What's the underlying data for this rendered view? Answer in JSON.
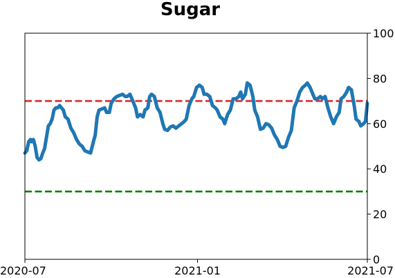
{
  "chart_data": {
    "type": "line",
    "title": "Sugar",
    "xlabel": "",
    "ylabel": "",
    "x_range": [
      "2020-07-01",
      "2021-07-01"
    ],
    "x_ticks": [
      {
        "date": "2020-07-01",
        "label": "2020-07"
      },
      {
        "date": "2021-01-01",
        "label": "2021-01"
      },
      {
        "date": "2021-07-01",
        "label": "2021-07"
      }
    ],
    "y_axis_side": "right",
    "ylim": [
      0,
      100
    ],
    "y_ticks": [
      0,
      20,
      40,
      60,
      80,
      100
    ],
    "grid": false,
    "legend": "none",
    "reference_lines": [
      {
        "value": 70,
        "color": "#d62728",
        "style": "dashed"
      },
      {
        "value": 30,
        "color": "#008000",
        "style": "dashed"
      }
    ],
    "series": [
      {
        "color": "#1f77b4",
        "points": [
          [
            "2020-07-01",
            47
          ],
          [
            "2020-07-03",
            48
          ],
          [
            "2020-07-05",
            52
          ],
          [
            "2020-07-07",
            53
          ],
          [
            "2020-07-08",
            52
          ],
          [
            "2020-07-10",
            53
          ],
          [
            "2020-07-12",
            50
          ],
          [
            "2020-07-14",
            45
          ],
          [
            "2020-07-16",
            44
          ],
          [
            "2020-07-18",
            44.5
          ],
          [
            "2020-07-20",
            47
          ],
          [
            "2020-07-22",
            49
          ],
          [
            "2020-07-24",
            54
          ],
          [
            "2020-07-26",
            59
          ],
          [
            "2020-07-28",
            60
          ],
          [
            "2020-07-30",
            62
          ],
          [
            "2020-08-01",
            66
          ],
          [
            "2020-08-03",
            67
          ],
          [
            "2020-08-05",
            67
          ],
          [
            "2020-08-07",
            68
          ],
          [
            "2020-08-09",
            67
          ],
          [
            "2020-08-11",
            66
          ],
          [
            "2020-08-13",
            63
          ],
          [
            "2020-08-16",
            62
          ],
          [
            "2020-08-19",
            58
          ],
          [
            "2020-08-22",
            56
          ],
          [
            "2020-08-25",
            53
          ],
          [
            "2020-08-28",
            51
          ],
          [
            "2020-08-31",
            50
          ],
          [
            "2020-09-03",
            48
          ],
          [
            "2020-09-06",
            47.5
          ],
          [
            "2020-09-09",
            47
          ],
          [
            "2020-09-12",
            52
          ],
          [
            "2020-09-14",
            55
          ],
          [
            "2020-09-16",
            63
          ],
          [
            "2020-09-18",
            66
          ],
          [
            "2020-09-21",
            66.5
          ],
          [
            "2020-09-24",
            67
          ],
          [
            "2020-09-26",
            65
          ],
          [
            "2020-09-29",
            65
          ],
          [
            "2020-10-01",
            69
          ],
          [
            "2020-10-04",
            71
          ],
          [
            "2020-10-07",
            72
          ],
          [
            "2020-10-10",
            72.5
          ],
          [
            "2020-10-13",
            73
          ],
          [
            "2020-10-16",
            72
          ],
          [
            "2020-10-18",
            72
          ],
          [
            "2020-10-21",
            73
          ],
          [
            "2020-10-24",
            70
          ],
          [
            "2020-10-27",
            67
          ],
          [
            "2020-10-29",
            63
          ],
          [
            "2020-11-01",
            64
          ],
          [
            "2020-11-04",
            63
          ],
          [
            "2020-11-06",
            66
          ],
          [
            "2020-11-09",
            67
          ],
          [
            "2020-11-11",
            72
          ],
          [
            "2020-11-13",
            73
          ],
          [
            "2020-11-16",
            72
          ],
          [
            "2020-11-19",
            67
          ],
          [
            "2020-11-22",
            65
          ],
          [
            "2020-11-25",
            60
          ],
          [
            "2020-11-27",
            57.5
          ],
          [
            "2020-11-30",
            57
          ],
          [
            "2020-12-03",
            58.5
          ],
          [
            "2020-12-06",
            59
          ],
          [
            "2020-12-09",
            58
          ],
          [
            "2020-12-12",
            59
          ],
          [
            "2020-12-15",
            60
          ],
          [
            "2020-12-18",
            61
          ],
          [
            "2020-12-20",
            62
          ],
          [
            "2020-12-23",
            68
          ],
          [
            "2020-12-26",
            71
          ],
          [
            "2020-12-28",
            72
          ],
          [
            "2020-12-31",
            76
          ],
          [
            "2021-01-03",
            77
          ],
          [
            "2021-01-06",
            76
          ],
          [
            "2021-01-08",
            73
          ],
          [
            "2021-01-11",
            73
          ],
          [
            "2021-01-14",
            72
          ],
          [
            "2021-01-17",
            68
          ],
          [
            "2021-01-20",
            67
          ],
          [
            "2021-01-22",
            66
          ],
          [
            "2021-01-25",
            63
          ],
          [
            "2021-01-28",
            62
          ],
          [
            "2021-01-30",
            60
          ],
          [
            "2021-02-02",
            64
          ],
          [
            "2021-02-05",
            66
          ],
          [
            "2021-02-08",
            71
          ],
          [
            "2021-02-11",
            71
          ],
          [
            "2021-02-14",
            72
          ],
          [
            "2021-02-16",
            74
          ],
          [
            "2021-02-18",
            71
          ],
          [
            "2021-02-21",
            73
          ],
          [
            "2021-02-23",
            78
          ],
          [
            "2021-02-26",
            77
          ],
          [
            "2021-03-01",
            72
          ],
          [
            "2021-03-03",
            66
          ],
          [
            "2021-03-06",
            63
          ],
          [
            "2021-03-09",
            57.5
          ],
          [
            "2021-03-12",
            58
          ],
          [
            "2021-03-15",
            60
          ],
          [
            "2021-03-18",
            59.5
          ],
          [
            "2021-03-21",
            58
          ],
          [
            "2021-03-24",
            55
          ],
          [
            "2021-03-27",
            53
          ],
          [
            "2021-03-30",
            50
          ],
          [
            "2021-04-02",
            49.5
          ],
          [
            "2021-04-05",
            50
          ],
          [
            "2021-04-08",
            54
          ],
          [
            "2021-04-11",
            57
          ],
          [
            "2021-04-14",
            67
          ],
          [
            "2021-04-17",
            70
          ],
          [
            "2021-04-20",
            74
          ],
          [
            "2021-04-23",
            76
          ],
          [
            "2021-04-26",
            77
          ],
          [
            "2021-04-28",
            78
          ],
          [
            "2021-05-01",
            76
          ],
          [
            "2021-05-04",
            73
          ],
          [
            "2021-05-06",
            71
          ],
          [
            "2021-05-09",
            71
          ],
          [
            "2021-05-12",
            72
          ],
          [
            "2021-05-14",
            71
          ],
          [
            "2021-05-17",
            72
          ],
          [
            "2021-05-20",
            67
          ],
          [
            "2021-05-23",
            63
          ],
          [
            "2021-05-26",
            60
          ],
          [
            "2021-05-29",
            63
          ],
          [
            "2021-06-01",
            65
          ],
          [
            "2021-06-03",
            71
          ],
          [
            "2021-06-06",
            72
          ],
          [
            "2021-06-09",
            74
          ],
          [
            "2021-06-11",
            76
          ],
          [
            "2021-06-14",
            75
          ],
          [
            "2021-06-17",
            68
          ],
          [
            "2021-06-19",
            62
          ],
          [
            "2021-06-22",
            61
          ],
          [
            "2021-06-24",
            59
          ],
          [
            "2021-06-27",
            60
          ],
          [
            "2021-06-29",
            61
          ],
          [
            "2021-07-01",
            69
          ]
        ]
      }
    ]
  }
}
